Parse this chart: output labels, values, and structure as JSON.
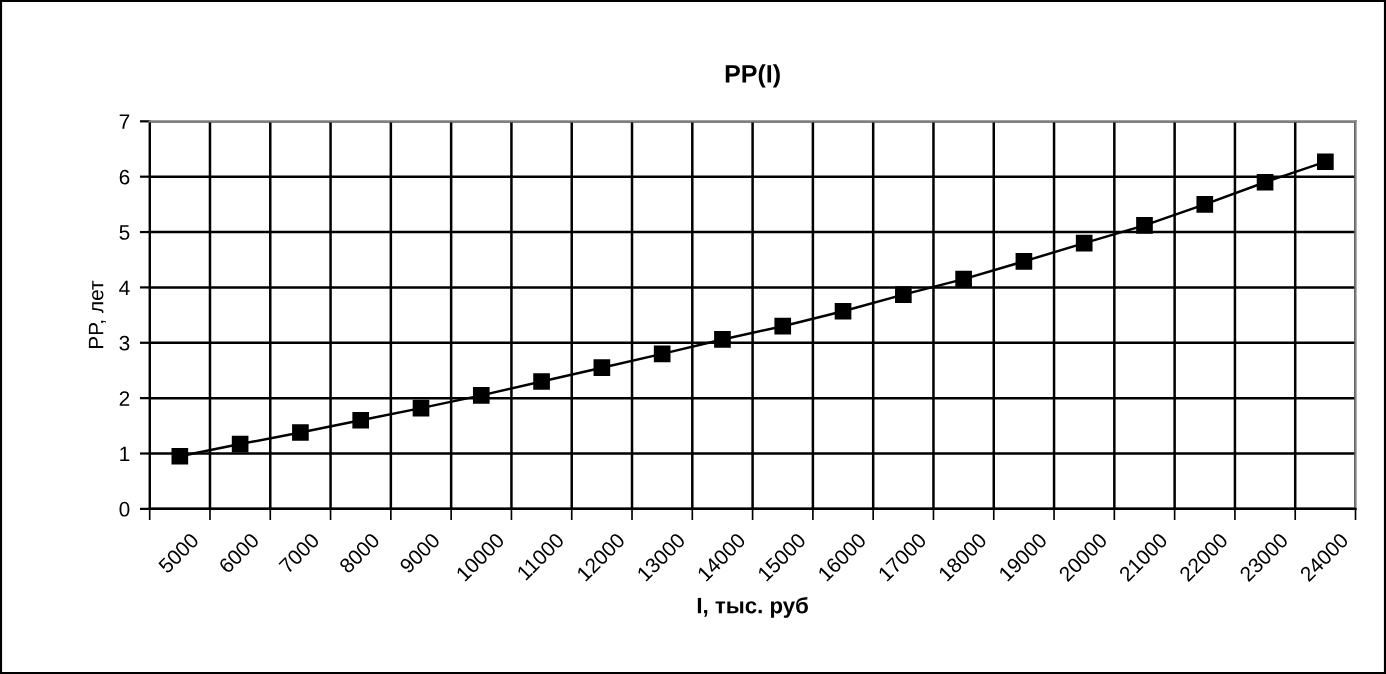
{
  "chart_data": {
    "type": "line",
    "title": "PP(I)",
    "xlabel": "I, тыс. руб",
    "ylabel": "PP, лет",
    "categories": [
      "5000",
      "6000",
      "7000",
      "8000",
      "9000",
      "10000",
      "11000",
      "12000",
      "13000",
      "14000",
      "15000",
      "16000",
      "17000",
      "18000",
      "19000",
      "20000",
      "21000",
      "22000",
      "23000",
      "24000"
    ],
    "series": [
      {
        "color": "#000000",
        "values": [
          0.95,
          1.17,
          1.38,
          1.6,
          1.82,
          2.05,
          2.3,
          2.55,
          2.8,
          3.06,
          3.3,
          3.57,
          3.87,
          4.15,
          4.47,
          4.8,
          5.12,
          5.5,
          5.9,
          6.27
        ]
      }
    ],
    "ylim": [
      0,
      7
    ],
    "yticks": [
      0,
      1,
      2,
      3,
      4,
      5,
      6,
      7
    ],
    "grid": true,
    "marker": "square",
    "line_style": "solid"
  }
}
